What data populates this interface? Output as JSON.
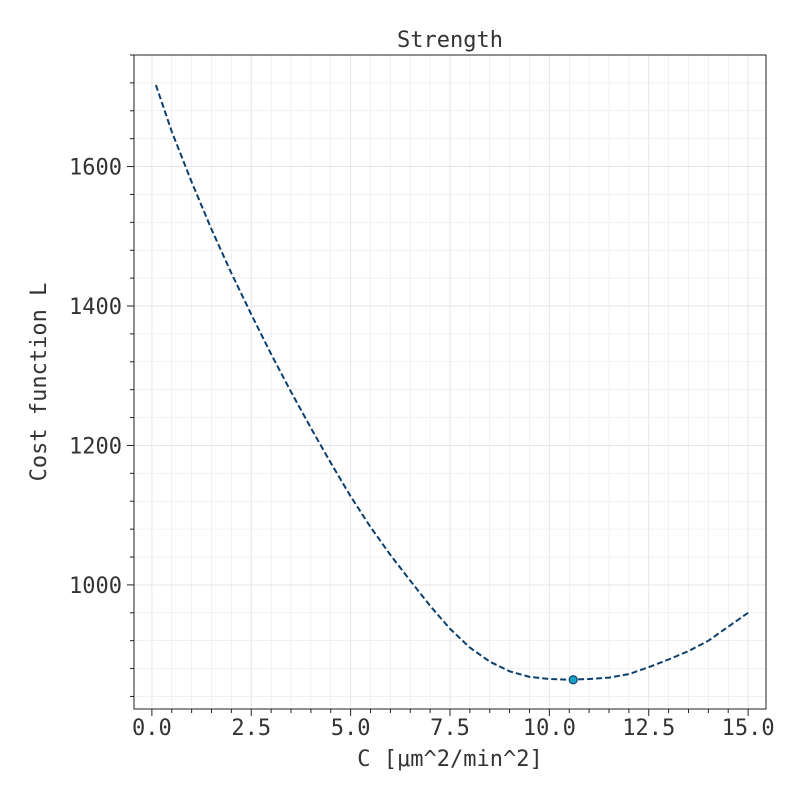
{
  "chart_data": {
    "type": "line",
    "title": "Strength",
    "xlabel": "C [μm^2/min^2]",
    "ylabel": "Cost function L",
    "xlim": [
      -0.45,
      15.45
    ],
    "ylim": [
      822,
      1760
    ],
    "x_ticks": [
      "0.0",
      "2.5",
      "5.0",
      "7.5",
      "10.0",
      "12.5",
      "15.0"
    ],
    "y_ticks": [
      "1000",
      "1200",
      "1400",
      "1600"
    ],
    "grid": true,
    "line_style": "dashed",
    "colors": {
      "line": "#0b3f6e",
      "marker_fill": "#1aa3c4",
      "marker_edge": "#0b3f6e",
      "grid": "#e6e6e6",
      "axes": "#222222"
    },
    "series": [
      {
        "x": [
          0.1,
          0.5,
          1.0,
          1.5,
          2.0,
          2.5,
          3.0,
          3.5,
          4.0,
          4.5,
          5.0,
          5.5,
          6.0,
          6.5,
          7.0,
          7.5,
          8.0,
          8.5,
          9.0,
          9.5,
          10.0,
          10.5,
          11.0,
          11.5,
          12.0,
          12.5,
          13.0,
          13.5,
          14.0,
          14.5,
          15.0
        ],
        "y": [
          1717,
          1650,
          1578,
          1510,
          1447,
          1388,
          1331,
          1277,
          1225,
          1175,
          1127,
          1083,
          1043,
          1006,
          970,
          937,
          910,
          890,
          876,
          868,
          865,
          864,
          865,
          867,
          872,
          882,
          893,
          905,
          920,
          940,
          960
        ]
      }
    ],
    "highlight_point": {
      "x": 10.6,
      "y": 864
    }
  }
}
